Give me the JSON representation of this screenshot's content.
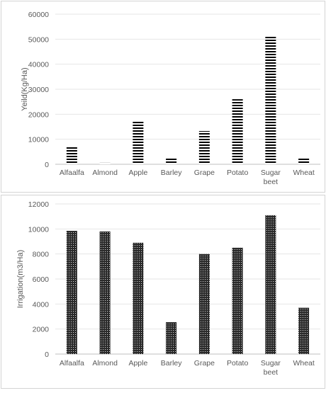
{
  "chart_data": [
    {
      "type": "bar",
      "title": "",
      "xlabel": "",
      "ylabel": "Yeild(Kg/Ha)",
      "ylim": [
        0,
        60000
      ],
      "yticks": [
        "0",
        "10000",
        "20000",
        "30000",
        "40000",
        "50000",
        "60000"
      ],
      "categories": [
        [
          "Alfaalfa"
        ],
        [
          "Almond"
        ],
        [
          "Apple"
        ],
        [
          "Barley"
        ],
        [
          "Grape"
        ],
        [
          "Potato"
        ],
        [
          "Sugar",
          "beet"
        ],
        [
          "Wheat"
        ]
      ],
      "values": [
        7000,
        600,
        17300,
        2700,
        13300,
        26000,
        51000,
        2700
      ],
      "grid": true,
      "legend": "none",
      "fill_pattern": "horizontal-stripes",
      "bar_color": "#000000"
    },
    {
      "type": "bar",
      "title": "",
      "xlabel": "",
      "ylabel": "Irrigation(m3/Ha)",
      "ylim": [
        0,
        12000
      ],
      "yticks": [
        "0",
        "2000",
        "4000",
        "6000",
        "8000",
        "10000",
        "12000"
      ],
      "categories": [
        [
          "Alfaalfa"
        ],
        [
          "Almond"
        ],
        [
          "Apple"
        ],
        [
          "Barley"
        ],
        [
          "Grape"
        ],
        [
          "Potato"
        ],
        [
          "Sugar",
          "beet"
        ],
        [
          "Wheat"
        ]
      ],
      "values": [
        9850,
        9800,
        8900,
        2550,
        8000,
        8500,
        11100,
        3700
      ],
      "grid": true,
      "legend": "none",
      "fill_pattern": "crosshatch-dots",
      "bar_color": "#000000"
    }
  ]
}
